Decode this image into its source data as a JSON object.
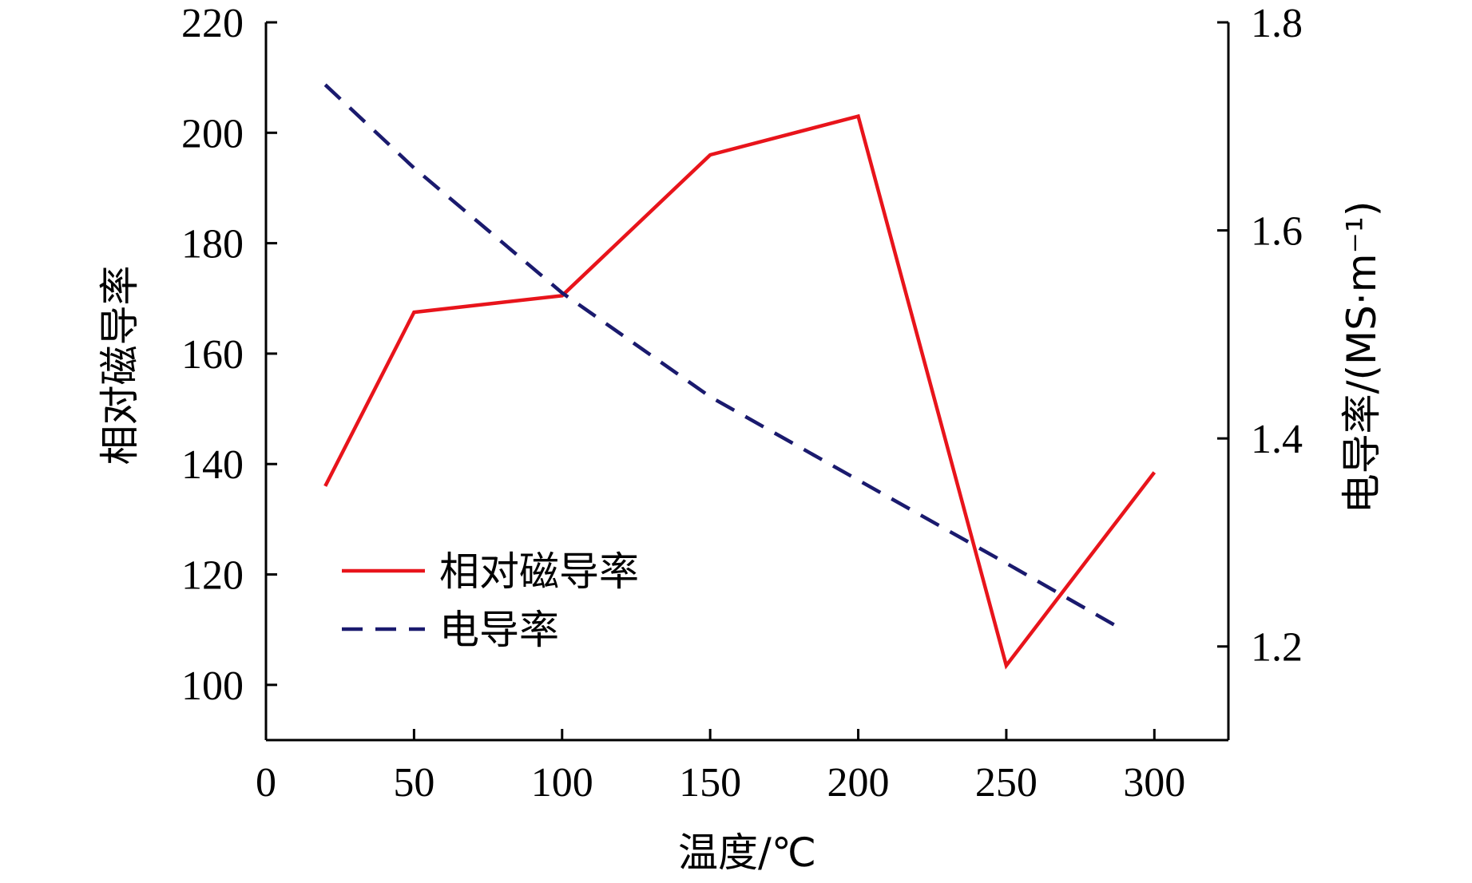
{
  "chart_data": {
    "type": "line",
    "xlabel": "温度/℃",
    "ylabel_left": "相对磁导率",
    "ylabel_right": "电导率/(MS·m⁻¹)",
    "xlim": [
      0,
      325
    ],
    "ylim_left": [
      90,
      220
    ],
    "ylim_right": [
      1.11,
      1.8
    ],
    "xticks": [
      0,
      50,
      100,
      150,
      200,
      250,
      300
    ],
    "yticks_left": [
      100,
      120,
      140,
      160,
      180,
      200,
      220
    ],
    "yticks_right": [
      1.2,
      1.4,
      1.6,
      1.8
    ],
    "grid": false,
    "legend_position": "lower-left",
    "series": [
      {
        "name": "相对磁导率",
        "axis": "left",
        "color": "#e8141b",
        "dash": "solid",
        "x": [
          20,
          50,
          100,
          150,
          200,
          250,
          300
        ],
        "y": [
          136,
          167.5,
          170.5,
          196,
          203,
          103.5,
          138.5
        ]
      },
      {
        "name": "电导率",
        "axis": "right",
        "color": "#1a1a6e",
        "dash": "dashed",
        "x": [
          20,
          50,
          100,
          150,
          200,
          250,
          290
        ],
        "y": [
          1.74,
          1.66,
          1.54,
          1.44,
          1.36,
          1.28,
          1.215
        ]
      }
    ]
  }
}
